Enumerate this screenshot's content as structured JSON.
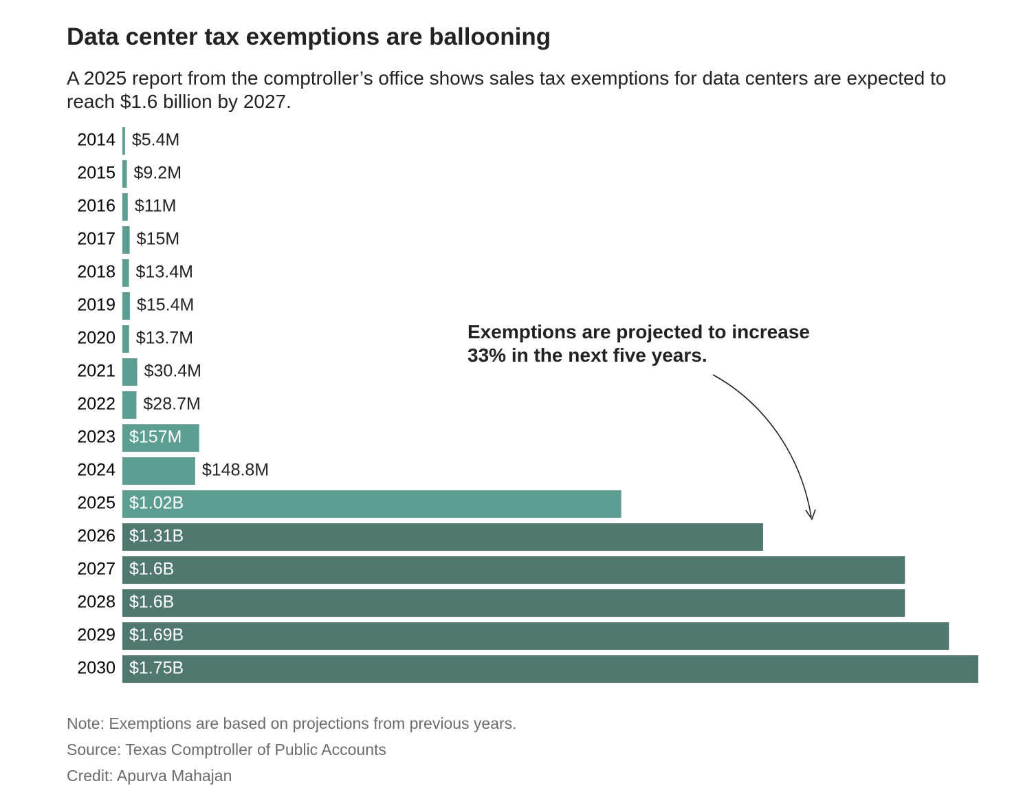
{
  "chart_data": {
    "type": "bar",
    "orientation": "horizontal",
    "title": "Data center tax exemptions are ballooning",
    "subtitle": "A 2025 report from the comptroller’s office shows sales tax exemptions for data centers are expected to reach $1.6 billion by 2027.",
    "annotation": "Exemptions are projected to increase 33% in the next five years.",
    "categories": [
      "2014",
      "2015",
      "2016",
      "2017",
      "2018",
      "2019",
      "2020",
      "2021",
      "2022",
      "2023",
      "2024",
      "2025",
      "2026",
      "2027",
      "2028",
      "2029",
      "2030"
    ],
    "values": [
      5.4,
      9.2,
      11,
      15,
      13.4,
      15.4,
      13.7,
      30.4,
      28.7,
      157,
      148.8,
      1020,
      1310,
      1600,
      1600,
      1690,
      1750
    ],
    "value_labels": [
      "$5.4M",
      "$9.2M",
      "$11M",
      "$15M",
      "$13.4M",
      "$15.4M",
      "$13.7M",
      "$30.4M",
      "$28.7M",
      "$157M",
      "$148.8M",
      "$1.02B",
      "$1.31B",
      "$1.6B",
      "$1.6B",
      "$1.69B",
      "$1.75B"
    ],
    "colors": [
      "#5c9e91",
      "#5c9e91",
      "#5c9e91",
      "#5c9e91",
      "#5c9e91",
      "#5c9e91",
      "#5c9e91",
      "#5c9e91",
      "#5c9e91",
      "#5c9e91",
      "#5c9e91",
      "#5c9e91",
      "#50786f",
      "#50786f",
      "#50786f",
      "#50786f",
      "#50786f"
    ],
    "notes": [
      "Note: Exemptions are based on projections from previous years.",
      "Source: Texas Comptroller of Public Accounts",
      "Credit: Apurva Mahajan"
    ]
  }
}
